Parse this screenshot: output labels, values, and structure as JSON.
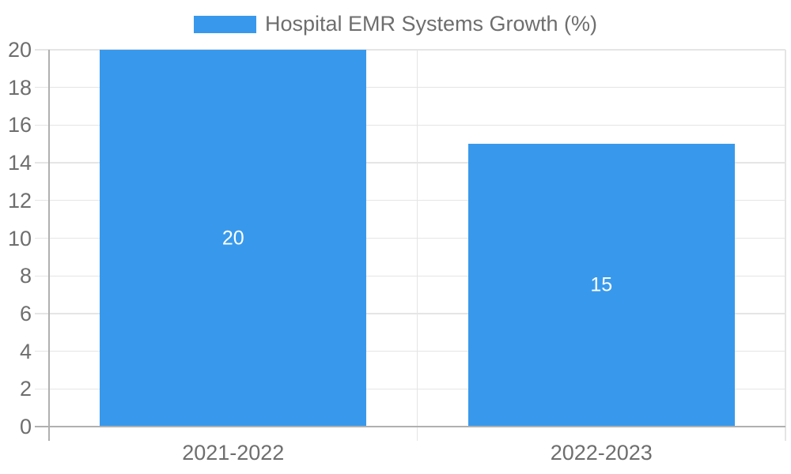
{
  "legend": {
    "label": "Hospital EMR Systems Growth (%)"
  },
  "colors": {
    "bar": "#3899EC",
    "grid": "#e5e5e5",
    "axis": "#b0b0b0",
    "text": "#6e6e6e",
    "bar_label": "#ffffff",
    "background": "#ffffff"
  },
  "chart_data": {
    "type": "bar",
    "title": "Hospital EMR Systems Growth (%)",
    "categories": [
      "2021-2022",
      "2022-2023"
    ],
    "values": [
      20,
      15
    ],
    "bar_value_labels": [
      "20",
      "15"
    ],
    "xlabel": "",
    "ylabel": "",
    "ylim": [
      0,
      20
    ],
    "yticks": [
      0,
      2,
      4,
      6,
      8,
      10,
      12,
      14,
      16,
      18,
      20
    ],
    "grid": true,
    "legend_position": "top",
    "series_color": "#3899EC"
  }
}
